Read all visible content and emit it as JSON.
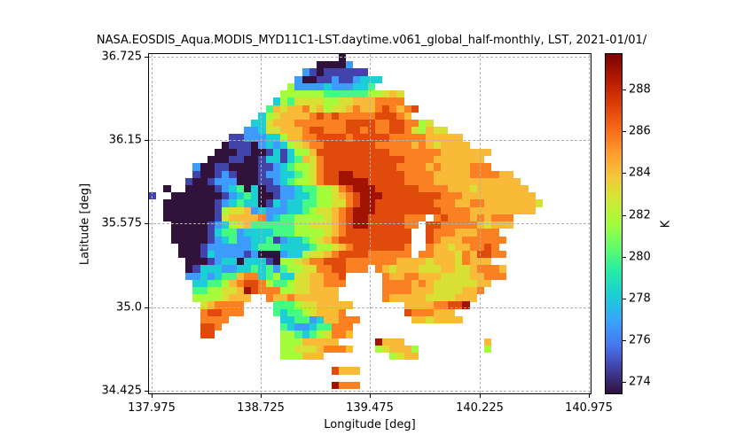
{
  "figure": {
    "title": "NASA.EOSDIS_Aqua.MODIS_MYD11C1-LST.daytime.v061_global_half-monthly, LST, 2021-01/01/",
    "xlabel": "Longitude [deg]",
    "ylabel": "Latitude [deg]",
    "colorbar_label": "K"
  },
  "chart_data": {
    "type": "heatmap",
    "title": "NASA.EOSDIS_Aqua.MODIS_MYD11C1-LST.daytime.v061_global_half-monthly, LST, 2021-01/01/",
    "xlabel": "Longitude [deg]",
    "ylabel": "Latitude [deg]",
    "x_ticks": [
      "137.975",
      "138.725",
      "139.475",
      "140.225",
      "140.975"
    ],
    "y_ticks": [
      "36.725",
      "36.15",
      "35.575",
      "35.0",
      "34.425"
    ],
    "xlim": [
      137.95,
      141.0
    ],
    "ylim": [
      34.4,
      36.75
    ],
    "grid": true,
    "colorbar": {
      "label": "K",
      "ticks": [
        "274",
        "276",
        "278",
        "280",
        "282",
        "284",
        "286",
        "288"
      ],
      "range": [
        273.4,
        289.6
      ],
      "colormap": "turbo"
    },
    "cell_size_deg": 0.05,
    "value_encoding": {
      ".": null,
      "0": 273.8,
      "1": 275.0,
      "2": 276.5,
      "3": 278.0,
      "4": 279.5,
      "5": 281.0,
      "6": 282.5,
      "7": 284.0,
      "8": 285.5,
      "9": 287.0,
      "A": 288.5
    },
    "rows_north_to_south": [
      "..........................0..................................",
      ".......................00002.................................",
      ".....................210111111...............................",
      "....................200112112333.............................",
      "...................522223222334.............................",
      "..................55555544444455676..........................",
      ".................354666655667778888.........................",
      "................476778675667877898789........................",
      "...............356777789898888899987........................",
      "..............3367778888888999988998856.....................",
      ".............2236677789988899898899865766....................",
      "...........11222335778899998999998888877777.................",
      "..........0111023235678899999998888878767777................",
      ".........00011001313557999999999988888887777777.............",
      "........00011001331347689999999999988887777777..............",
      "......20011000011234556899999999998888787777888.............",
      "......10012100012233456899AA9999999888877777888877..........",
      ".....100122200011234556899AAAA999998888777777777777.........",
      "..0..00001234030112234455689AAA999999888877767777777........",
      "1..00000001234300122334556789AAA999999998887777777777.......",
      "..000000012343301323344556689AA99999999888778877777776......",
      "..00000001566723222334566789AAA9999999998888777777777.......",
      "..00000001677778234455556789AA99999888.89888787888..........",
      "...0000012356744444455666789AA9999988.998888876777..........",
      "...000001344233334445555678999999999..9888777888............",
      "...000001234223341233456789999999999..98777888888...........",
      "....00012222223444333345567899999998..8776778898...........",
      "....00013222212000233566789999888888.887776879988...........",
      ".....000123303331055678899988888887777677768777.............",
      ".....0133322334342455668899888.876777666776678887...........",
      ".....2232344788345336677889.....87788777666677888..........",
      "......334457899854456677888.....888878766666677............",
      "......4455667A988855667777......88887776666778.............",
      "......55556777..8778777777......8777776666777..............",
      ".......678888....44456677777.......77778899A...............",
      ".......899888....4344567778........9888777.................",
      ".......8888.......33442377888.......7767777...............",
      ".......998........4322344888...............................",
      ".......99.........5543456887...............................",
      "..................55577777.....A777...........7............",
      "..................5566678887...567775.........5............",
      "..................555777.........5677.....................",
      "................................................................",
      ".........................9777...............................",
      "................................................................",
      ".........................A888...............................",
      "................................................................"
    ]
  }
}
